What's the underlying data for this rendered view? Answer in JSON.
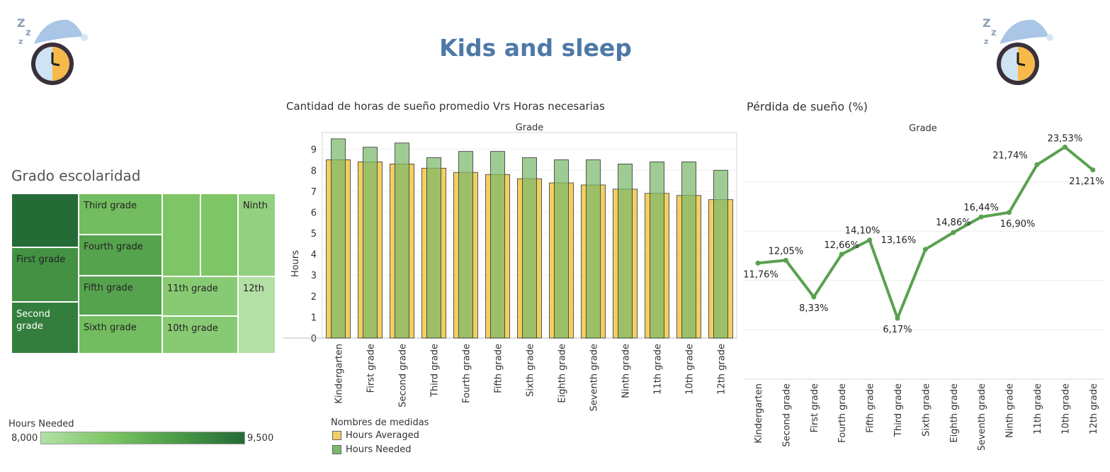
{
  "header": {
    "title": "Kids and sleep"
  },
  "treemap": {
    "title": "Grado escolaridad",
    "legend_title": "Hours Needed",
    "legend_min": "8,000",
    "legend_max": "9,500",
    "cells": [
      {
        "label": "",
        "value": 9.5
      },
      {
        "label": "First grade",
        "value": 9.1
      },
      {
        "label": "Second grade",
        "value": 9.3
      },
      {
        "label": "Third grade",
        "value": 8.6
      },
      {
        "label": "Fourth grade",
        "value": 8.9
      },
      {
        "label": "Fifth grade",
        "value": 8.9
      },
      {
        "label": "Sixth grade",
        "value": 8.6
      },
      {
        "label": "",
        "value": 8.5
      },
      {
        "label": "",
        "value": 8.5
      },
      {
        "label": "Ninth",
        "value": 8.3
      },
      {
        "label": "11th grade",
        "value": 8.4
      },
      {
        "label": "10th grade",
        "value": 8.4
      },
      {
        "label": "12th",
        "value": 8.0
      }
    ]
  },
  "bar_panel": {
    "title": "Cantidad de horas de sueño promedio Vrs Horas necesarias",
    "legend_title": "Nombres de medidas",
    "legend_items": [
      {
        "label": "Hours Averaged",
        "color": "#f2cf63"
      },
      {
        "label": "Hours Needed",
        "color": "#7ab86a"
      }
    ]
  },
  "line_panel": {
    "title": "Pérdida de sueño (%)"
  },
  "colors": {
    "title": "#4e79a7",
    "line": "#59a14f",
    "averaged": "#f2cf63",
    "needed": "#7ab86a"
  },
  "chart_data": [
    {
      "type": "bar",
      "title": "Cantidad de horas de sueño promedio Vrs Horas necesarias",
      "xlabel": "Grade",
      "ylabel": "Hours",
      "ylim": [
        0,
        9.8
      ],
      "yticks": [
        0,
        1,
        2,
        3,
        4,
        5,
        6,
        7,
        8,
        9
      ],
      "categories": [
        "Kindergarten",
        "First grade",
        "Second grade",
        "Third grade",
        "Fourth grade",
        "Fifth grade",
        "Sixth grade",
        "Eighth grade",
        "Seventh grade",
        "Ninth grade",
        "11th grade",
        "10th grade",
        "12th grade"
      ],
      "series": [
        {
          "name": "Hours Averaged",
          "values": [
            8.5,
            8.4,
            8.3,
            8.1,
            7.9,
            7.8,
            7.6,
            7.4,
            7.3,
            7.1,
            6.9,
            6.8,
            6.6
          ]
        },
        {
          "name": "Hours Needed",
          "values": [
            9.5,
            9.1,
            9.3,
            8.6,
            8.9,
            8.9,
            8.6,
            8.5,
            8.5,
            8.3,
            8.4,
            8.4,
            8.0
          ]
        }
      ],
      "grid": true,
      "legend": "bottom-left"
    },
    {
      "type": "line",
      "title": "Pérdida de sueño (%)",
      "xlabel": "Grade",
      "ylim": [
        0,
        25
      ],
      "categories": [
        "Kindergarten",
        "Second grade",
        "First grade",
        "Fourth grade",
        "Fifth grade",
        "Third grade",
        "Sixth grade",
        "Eighth grade",
        "Seventh grade",
        "Ninth grade",
        "11th grade",
        "10th grade",
        "12th grade"
      ],
      "values": [
        11.76,
        12.05,
        8.33,
        12.66,
        14.1,
        6.17,
        13.16,
        14.86,
        16.44,
        16.9,
        21.74,
        23.53,
        21.21
      ],
      "labels": [
        "11,76%",
        "12,05%",
        "8,33%",
        "12,66%",
        "14,10%",
        "6,17%",
        "13,16%",
        "14,86%",
        "16,44%",
        "16,90%",
        "21,74%",
        "23,53%",
        "21,21%"
      ],
      "grid": true
    }
  ]
}
